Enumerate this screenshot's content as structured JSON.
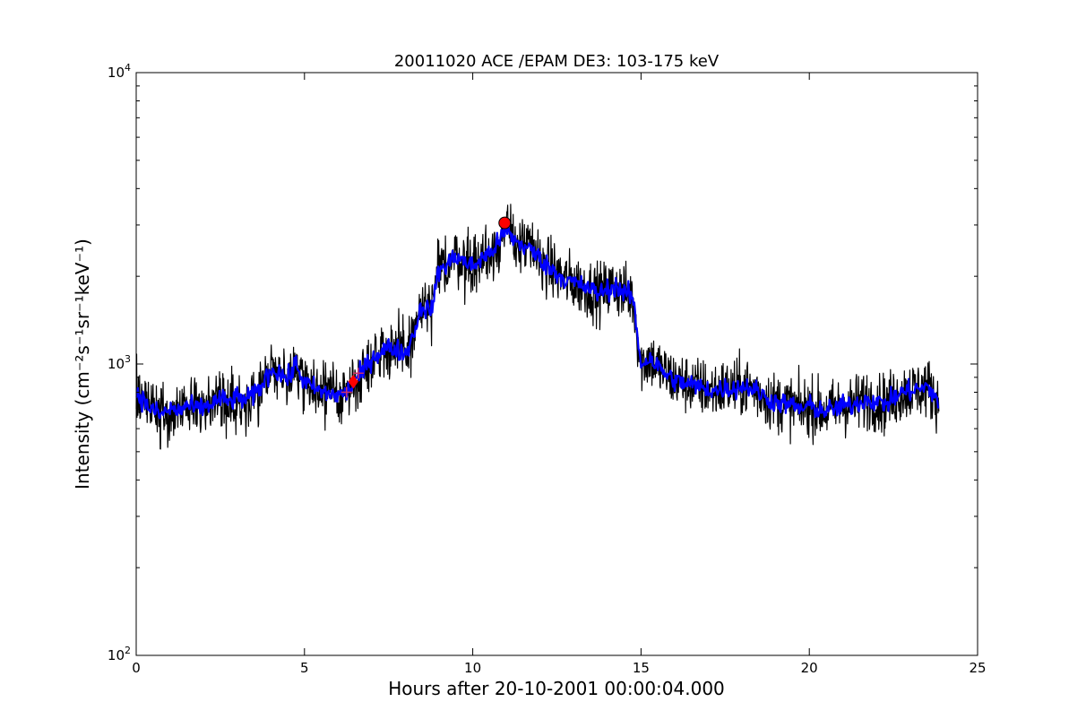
{
  "chart_data": {
    "type": "line",
    "title": "20011020 ACE /EPAM DE3: 103-175 keV",
    "xlabel": "Hours after 20-10-2001 00:00:04.000",
    "ylabel": "Intensity (cm⁻²s⁻¹sr⁻¹keV⁻¹)",
    "xlim": [
      0,
      25
    ],
    "ylim": [
      100,
      10000
    ],
    "yscale": "log",
    "grid": false,
    "xticks": [
      0,
      5,
      10,
      15,
      20,
      25
    ],
    "yticks": [
      {
        "value": 100,
        "base": "10",
        "exp": "2"
      },
      {
        "value": 1000,
        "base": "10",
        "exp": "3"
      },
      {
        "value": 10000,
        "base": "10",
        "exp": "4"
      }
    ],
    "colors": {
      "raw": "#000000",
      "smoothed": "#0000ff",
      "markers": "#ff0000",
      "cross": "#cc3366"
    },
    "series": [
      {
        "style": "raw",
        "x": [
          0.0,
          0.25,
          0.5,
          0.75,
          1.0,
          1.25,
          1.5,
          1.75,
          2.0,
          2.25,
          2.5,
          2.75,
          3.0,
          3.25,
          3.5,
          3.75,
          4.0,
          4.25,
          4.5,
          4.75,
          5.0,
          5.25,
          5.5,
          5.75,
          6.0,
          6.25,
          6.5,
          6.75,
          7.0,
          7.25,
          7.5,
          7.75,
          8.0,
          8.25,
          8.5,
          8.75,
          9.0,
          9.25,
          9.5,
          9.75,
          10.0,
          10.25,
          10.5,
          10.75,
          11.0,
          11.25,
          11.5,
          11.75,
          12.0,
          12.25,
          12.5,
          12.75,
          13.0,
          13.25,
          13.5,
          13.75,
          14.0,
          14.25,
          14.5,
          14.75,
          15.0,
          15.25,
          15.5,
          15.75,
          16.0,
          16.25,
          16.5,
          16.75,
          17.0,
          17.25,
          17.5,
          17.75,
          18.0,
          18.25,
          18.5,
          18.75,
          19.0,
          19.25,
          19.5,
          19.75,
          20.0,
          20.25,
          20.5,
          20.75,
          21.0,
          21.25,
          21.5,
          21.75,
          22.0,
          22.25,
          22.5,
          22.75,
          23.0,
          23.25,
          23.5,
          23.75,
          23.85
        ],
        "y": [
          800,
          740,
          690,
          670,
          700,
          690,
          720,
          700,
          710,
          730,
          760,
          740,
          770,
          750,
          780,
          850,
          960,
          940,
          880,
          1000,
          860,
          830,
          800,
          790,
          780,
          800,
          860,
          950,
          1050,
          1100,
          1140,
          1120,
          1080,
          1280,
          1600,
          1500,
          2100,
          2200,
          2350,
          2250,
          2150,
          2300,
          2400,
          2600,
          2900,
          2650,
          2550,
          2450,
          2300,
          2150,
          2050,
          1950,
          1900,
          1850,
          1800,
          1750,
          1800,
          1850,
          1750,
          1700,
          1000,
          1050,
          980,
          920,
          880,
          860,
          850,
          830,
          820,
          810,
          830,
          820,
          840,
          830,
          800,
          760,
          740,
          730,
          720,
          700,
          720,
          700,
          690,
          700,
          720,
          720,
          740,
          760,
          740,
          730,
          760,
          800,
          810,
          820,
          830,
          780,
          720
        ]
      },
      {
        "style": "smoothed",
        "x": [
          0.0,
          0.25,
          0.5,
          0.75,
          1.0,
          1.25,
          1.5,
          1.75,
          2.0,
          2.25,
          2.5,
          2.75,
          3.0,
          3.25,
          3.5,
          3.75,
          4.0,
          4.25,
          4.5,
          4.75,
          5.0,
          5.25,
          5.5,
          5.75,
          6.0,
          6.25,
          6.5,
          6.75,
          7.0,
          7.25,
          7.5,
          7.75,
          8.0,
          8.25,
          8.5,
          8.75,
          9.0,
          9.25,
          9.5,
          9.75,
          10.0,
          10.25,
          10.5,
          10.75,
          11.0,
          11.25,
          11.5,
          11.75,
          12.0,
          12.25,
          12.5,
          12.75,
          13.0,
          13.25,
          13.5,
          13.75,
          14.0,
          14.25,
          14.5,
          14.75,
          15.0,
          15.25,
          15.5,
          15.75,
          16.0,
          16.25,
          16.5,
          16.75,
          17.0,
          17.25,
          17.5,
          17.75,
          18.0,
          18.25,
          18.5,
          18.75,
          19.0,
          19.25,
          19.5,
          19.75,
          20.0,
          20.25,
          20.5,
          20.75,
          21.0,
          21.25,
          21.5,
          21.75,
          22.0,
          22.25,
          22.5,
          22.75,
          23.0,
          23.25,
          23.5,
          23.75,
          23.85
        ],
        "y": [
          800,
          740,
          690,
          670,
          700,
          690,
          720,
          700,
          710,
          730,
          760,
          740,
          770,
          750,
          780,
          850,
          960,
          940,
          880,
          1000,
          860,
          830,
          800,
          790,
          780,
          800,
          860,
          950,
          1050,
          1100,
          1140,
          1120,
          1080,
          1280,
          1600,
          1500,
          2100,
          2200,
          2350,
          2250,
          2150,
          2300,
          2400,
          2600,
          2900,
          2650,
          2550,
          2450,
          2300,
          2150,
          2050,
          1950,
          1900,
          1850,
          1800,
          1750,
          1800,
          1850,
          1750,
          1700,
          1000,
          1050,
          980,
          920,
          880,
          860,
          850,
          830,
          820,
          810,
          830,
          820,
          840,
          830,
          800,
          760,
          740,
          730,
          720,
          700,
          720,
          700,
          690,
          700,
          720,
          720,
          740,
          760,
          740,
          730,
          760,
          800,
          810,
          820,
          830,
          780,
          720
        ]
      }
    ],
    "markers": [
      {
        "shape": "circle",
        "x": 10.95,
        "y": 3050
      },
      {
        "shape": "diamond",
        "x": 6.45,
        "y": 870
      },
      {
        "shape": "cross",
        "x": 6.25,
        "y": 800
      },
      {
        "shape": "cross",
        "x": 6.6,
        "y": 930
      }
    ]
  }
}
